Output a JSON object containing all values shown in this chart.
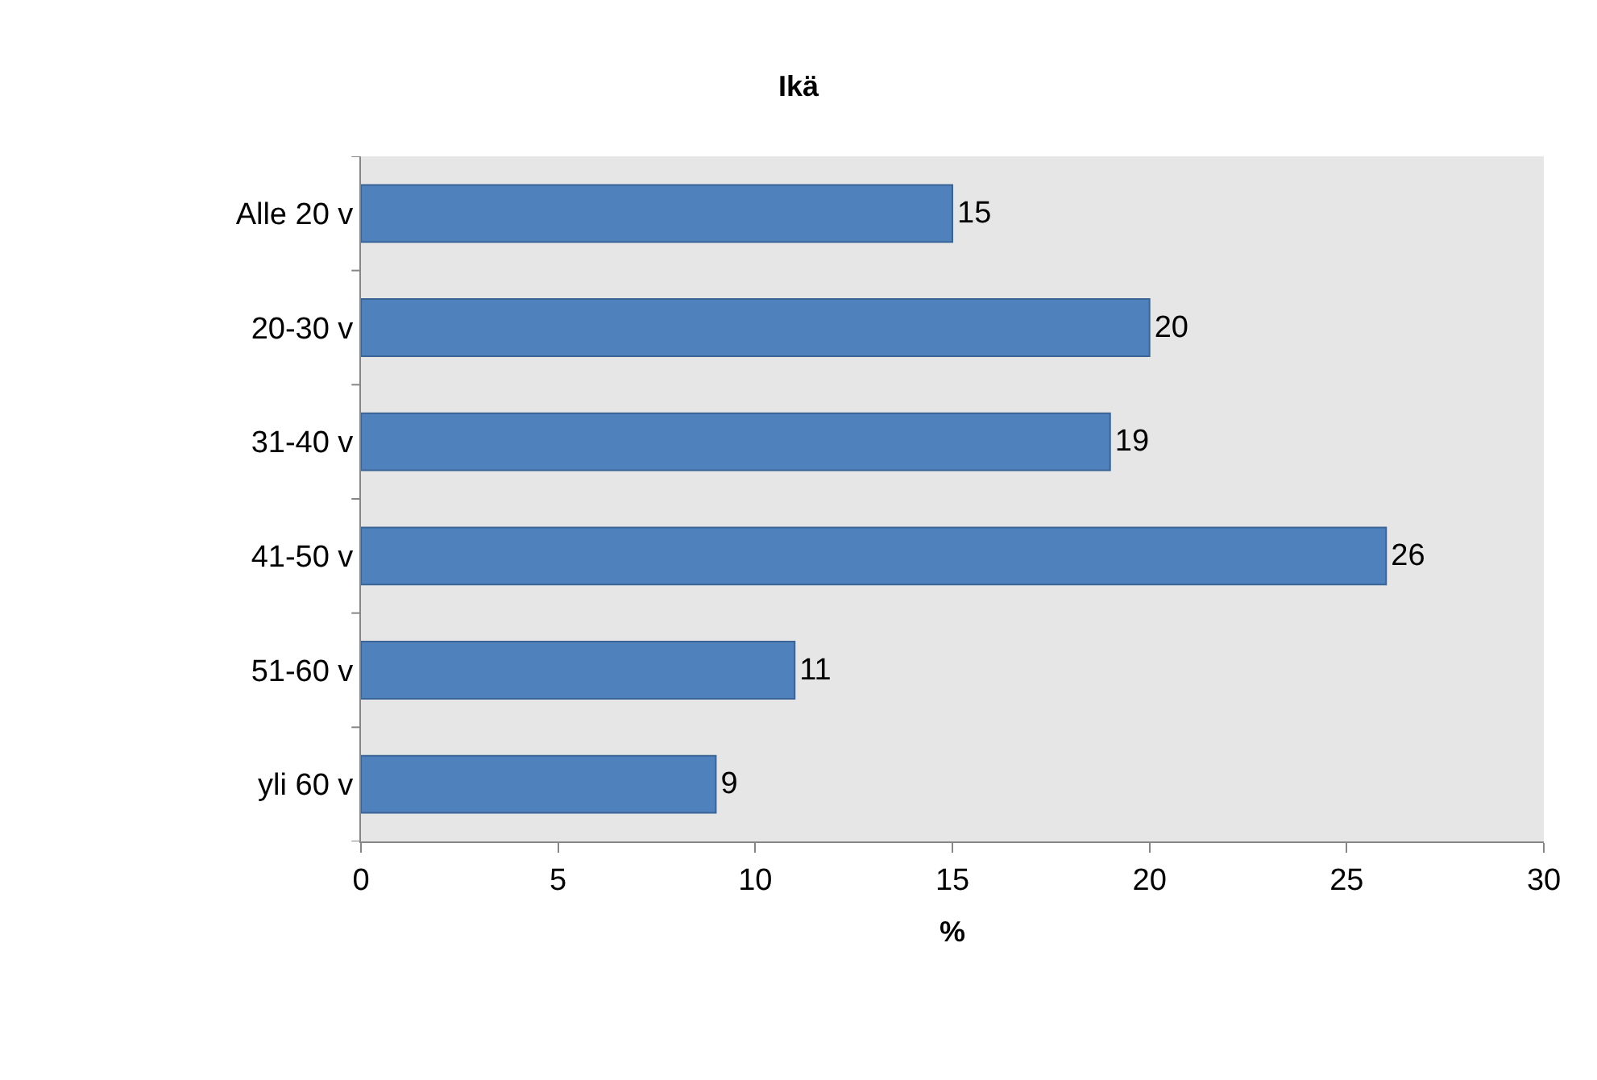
{
  "chart_data": {
    "type": "bar",
    "title": "Ikä",
    "xlabel": "%",
    "orientation": "horizontal",
    "categories": [
      "Alle 20 v",
      "20-30 v",
      "31-40 v",
      "41-50 v",
      "51-60 v",
      "yli 60 v"
    ],
    "values": [
      15,
      20,
      19,
      26,
      11,
      9
    ],
    "color": "#4f81bd",
    "xlim": [
      0,
      30
    ],
    "xticks": [
      0,
      5,
      10,
      15,
      20,
      25,
      30
    ],
    "data_labels": true
  }
}
